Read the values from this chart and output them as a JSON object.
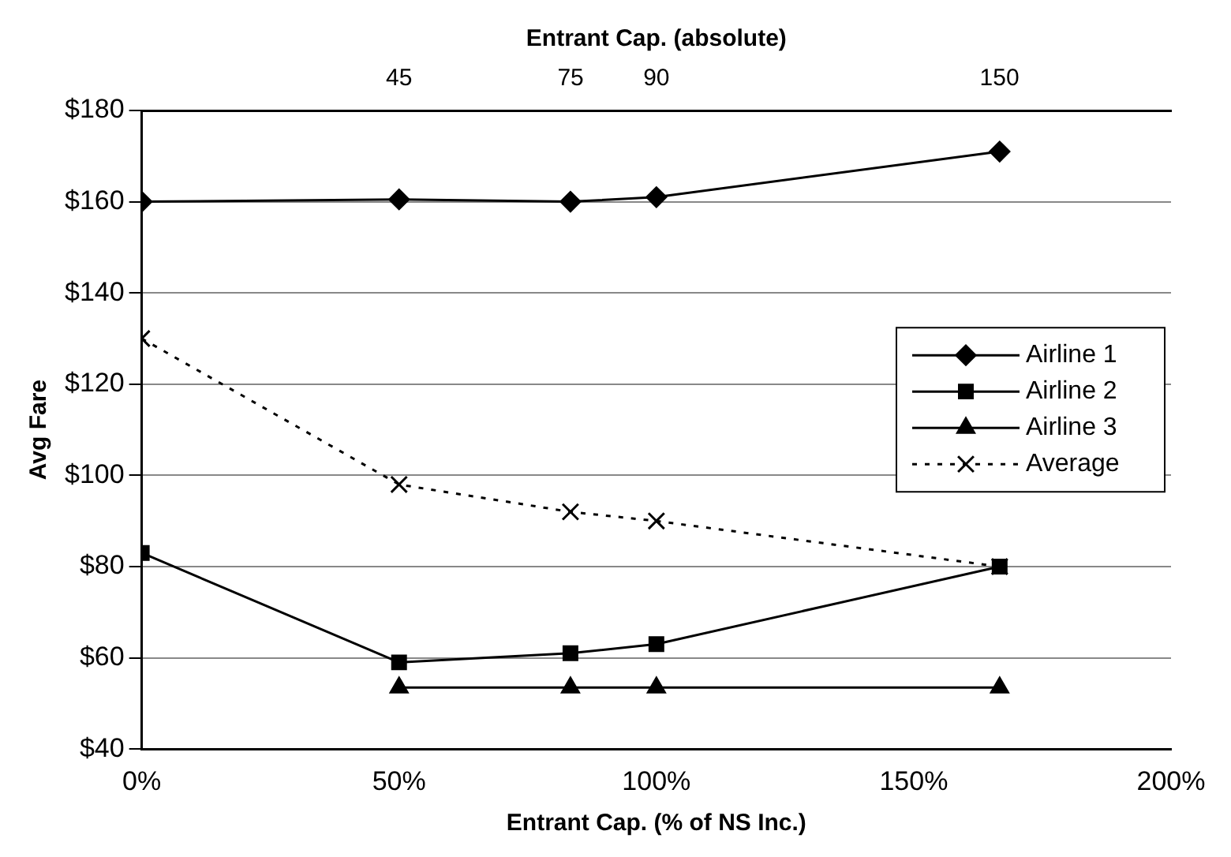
{
  "chart_data": {
    "type": "line",
    "xlabel": "Entrant Cap. (% of NS Inc.)",
    "x2label": "Entrant Cap. (absolute)",
    "ylabel": "Avg Fare",
    "xlim": [
      0,
      200
    ],
    "xticks": [
      {
        "value": 0,
        "label": "0%"
      },
      {
        "value": 50,
        "label": "50%"
      },
      {
        "value": 100,
        "label": "100%"
      },
      {
        "value": 150,
        "label": "150%"
      },
      {
        "value": 200,
        "label": "200%"
      }
    ],
    "x2lim": [
      0,
      180
    ],
    "x2ticks": [
      45,
      75,
      90,
      150
    ],
    "ylim": [
      40,
      180
    ],
    "yticks": [
      {
        "value": 40,
        "label": "$40"
      },
      {
        "value": 60,
        "label": "$60"
      },
      {
        "value": 80,
        "label": "$80"
      },
      {
        "value": 100,
        "label": "$100"
      },
      {
        "value": 120,
        "label": "$120"
      },
      {
        "value": 140,
        "label": "$140"
      },
      {
        "value": 160,
        "label": "$160"
      },
      {
        "value": 180,
        "label": "$180"
      }
    ],
    "grid": "y",
    "legend": "right",
    "series": [
      {
        "name": "Airline 1",
        "color": "#000000",
        "marker": "diamond",
        "line_style": "solid",
        "x": [
          0,
          50,
          83.3,
          100,
          166.7
        ],
        "values": [
          160,
          160.5,
          160,
          161,
          171
        ]
      },
      {
        "name": "Airline 2",
        "color": "#000000",
        "marker": "square",
        "line_style": "solid",
        "x": [
          0,
          50,
          83.3,
          100,
          166.7
        ],
        "values": [
          83,
          59,
          61,
          63,
          80
        ]
      },
      {
        "name": "Airline 3",
        "color": "#000000",
        "marker": "triangle",
        "line_style": "solid",
        "x": [
          50,
          83.3,
          100,
          166.7
        ],
        "values": [
          53.5,
          53.5,
          53.5,
          53.5
        ]
      },
      {
        "name": "Average",
        "color": "#000000",
        "marker": "cross",
        "line_style": "dotted",
        "x": [
          0,
          50,
          83.3,
          100,
          166.7
        ],
        "values": [
          130,
          98,
          92,
          90,
          80
        ]
      }
    ]
  }
}
